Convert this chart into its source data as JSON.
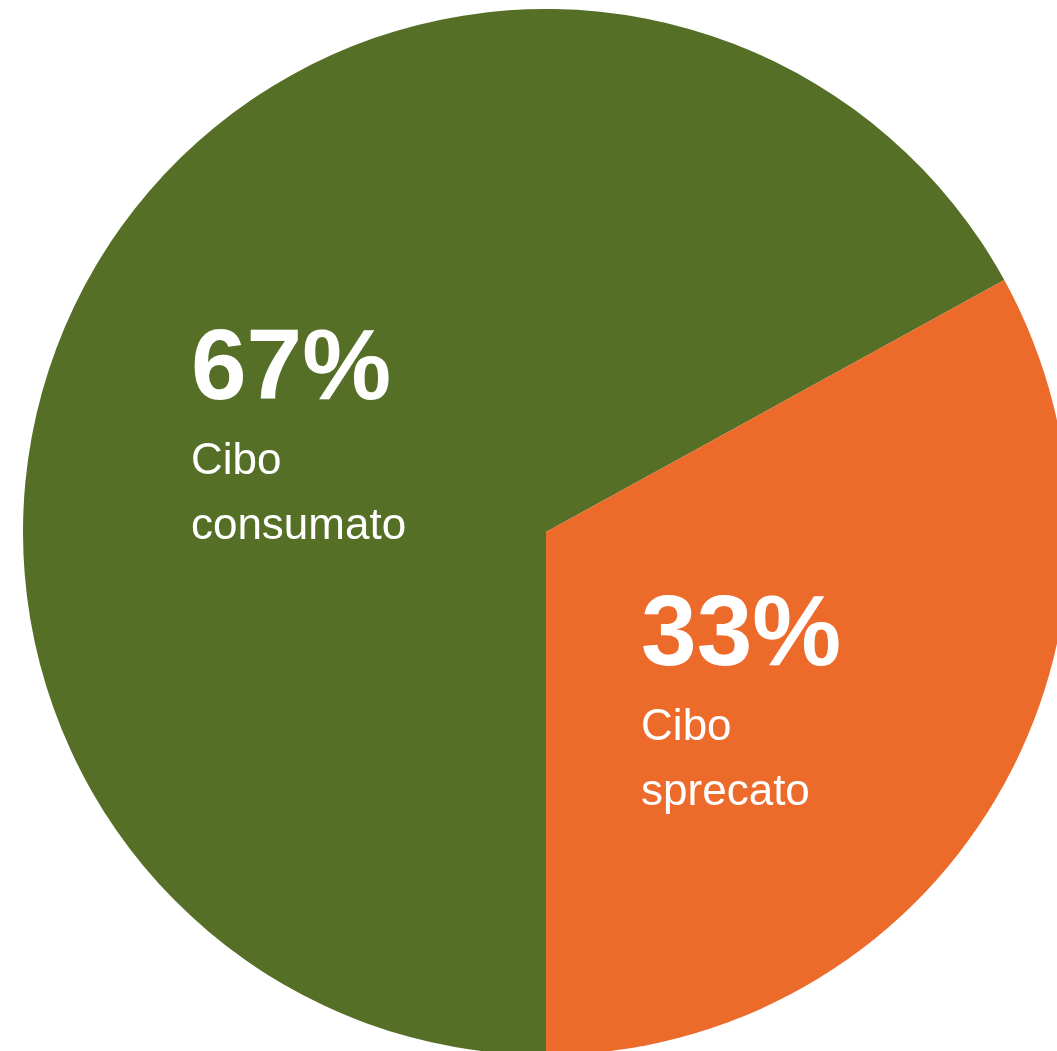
{
  "chart_data": {
    "type": "pie",
    "categories": [
      "Cibo consumato",
      "Cibo sprecato"
    ],
    "values": [
      67,
      33
    ],
    "colors": [
      "#557026",
      "#ec6a2a"
    ],
    "value_labels": [
      "67%",
      "33%"
    ]
  }
}
